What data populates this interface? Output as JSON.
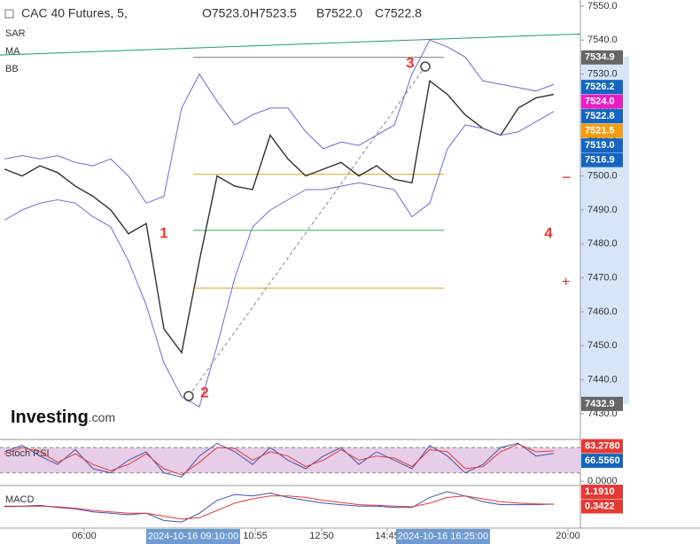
{
  "chart_data": [
    {
      "type": "line",
      "title": "CAC 40 Futures, 5,",
      "ohlc_labels": [
        "O7523.0",
        "H7523.5",
        "B7522.0",
        "C7522.8"
      ],
      "indicators": [
        "SAR",
        "MA",
        "BB"
      ],
      "logo": "Investing",
      "logo_suffix": ".com",
      "x": [
        0,
        1,
        2,
        3,
        4,
        5,
        6,
        7,
        8,
        9,
        10,
        11,
        12,
        13,
        14,
        15,
        16,
        17,
        18,
        19,
        20,
        21,
        22,
        23,
        24,
        25,
        26,
        27,
        28,
        29,
        30,
        31
      ],
      "xlim": [
        -0.25,
        32.5
      ],
      "ylim": [
        7422.7,
        7551.8
      ],
      "yticks": [
        {
          "value": 7430,
          "label": "7430.0"
        },
        {
          "value": 7440,
          "label": "7440.0"
        },
        {
          "value": 7450,
          "label": "7450.0"
        },
        {
          "value": 7460,
          "label": "7460.0"
        },
        {
          "value": 7470,
          "label": "7470.0"
        },
        {
          "value": 7480,
          "label": "7480.0"
        },
        {
          "value": 7490,
          "label": "7490.0"
        },
        {
          "value": 7500,
          "label": "7500.0"
        },
        {
          "value": 7510,
          "label": "7510.0"
        },
        {
          "value": 7520,
          "label": "7520.0"
        },
        {
          "value": 7530,
          "label": "7530.0"
        },
        {
          "value": 7540,
          "label": "7540.0"
        },
        {
          "value": 7550,
          "label": "7550.0"
        }
      ],
      "xticks": [
        {
          "value": 4.5,
          "label": "06:00"
        },
        {
          "value": 14.15,
          "label": "10:55"
        },
        {
          "value": 17.9,
          "label": "12:50"
        },
        {
          "value": 21.6,
          "label": "14:45"
        },
        {
          "value": 31.8,
          "label": "20:00"
        }
      ],
      "x_highlights": [
        {
          "value": 10.65,
          "label": "2024-10-16 09:10:00"
        },
        {
          "value": 24.75,
          "label": "2024-10-16 16:25:00"
        }
      ],
      "series": [
        {
          "color": "#2f2f2f",
          "values": [
            7502,
            7500,
            7503,
            7501,
            7497,
            7494,
            7490,
            7483,
            7486,
            7455,
            7448,
            7475,
            7500,
            7497,
            7496,
            7512,
            7505,
            7500,
            7502,
            7504,
            7500,
            7503,
            7499,
            7498,
            7528,
            7524,
            7518,
            7514,
            7512,
            7520,
            7523,
            7524
          ]
        },
        {
          "color": "#6b6bd6",
          "values": [
            7505,
            7506,
            7505,
            7506,
            7504,
            7503,
            7505,
            7500,
            7492,
            7494,
            7520,
            7530,
            7522,
            7515,
            7518,
            7520,
            7520,
            7513,
            7508,
            7510,
            7509,
            7512,
            7515,
            7530,
            7540,
            7538,
            7535,
            7528,
            7527,
            7526,
            7525,
            7527
          ]
        },
        {
          "color": "#6b6bd6",
          "values": [
            7487,
            7490,
            7492,
            7493,
            7492,
            7488,
            7485,
            7475,
            7462,
            7445,
            7435,
            7432,
            7450,
            7470,
            7485,
            7490,
            7493,
            7496,
            7496,
            7497,
            7498,
            7497,
            7496,
            7488,
            7492,
            7508,
            7515,
            7514,
            7512,
            7513,
            7516,
            7519
          ]
        }
      ],
      "levels": [
        {
          "value": 7534.9,
          "color": "#777777"
        },
        {
          "value": 7500.5,
          "color": "#e0a020"
        },
        {
          "value": 7484,
          "color": "#3cb043"
        },
        {
          "value": 7467,
          "color": "#e0a020"
        }
      ],
      "trendline": {
        "color": "#1a9a80",
        "values": [
          7535.6,
          7541.8
        ]
      },
      "annotations": [
        {
          "text": "1",
          "x": 9.0,
          "y": 7483
        },
        {
          "text": "2",
          "x": 11.3,
          "y": 7436
        },
        {
          "text": "3",
          "x": 22.9,
          "y": 7533
        },
        {
          "text": "4",
          "x": 30.7,
          "y": 7483
        }
      ],
      "price_labels": [
        {
          "value": 7534.9,
          "label": "7534.9",
          "color": "#666666"
        },
        {
          "value": 7526.2,
          "label": "7526.2",
          "color": "#1565c0"
        },
        {
          "value": 7524.0,
          "label": "7524.0",
          "color": "#e91ec8"
        },
        {
          "value": 7522.8,
          "label": "7522.8",
          "color": "#1565c0"
        },
        {
          "value": 7521.5,
          "label": "7521.5",
          "color": "#f39c12"
        },
        {
          "value": 7519.0,
          "label": "7519.0",
          "color": "#1565c0"
        },
        {
          "value": 7516.9,
          "label": "7516.9",
          "color": "#1565c0"
        },
        {
          "value": 7432.9,
          "label": "7432.9",
          "color": "#666666"
        }
      ]
    },
    {
      "type": "line",
      "title": "Stoch RSI",
      "xlim": [
        -0.25,
        32.5
      ],
      "ylim": [
        -10,
        95
      ],
      "x": [
        0,
        1,
        2,
        3,
        4,
        5,
        6,
        7,
        8,
        9,
        10,
        11,
        12,
        13,
        14,
        15,
        16,
        17,
        18,
        19,
        20,
        21,
        22,
        23,
        24,
        25,
        26,
        27,
        28,
        29,
        30,
        31
      ],
      "band": [
        20,
        80
      ],
      "yticks": [
        {
          "value": 0,
          "label": "0.0000"
        }
      ],
      "series": [
        {
          "color": "#3f51b5",
          "values": [
            70,
            85,
            60,
            40,
            75,
            30,
            20,
            50,
            70,
            20,
            10,
            60,
            90,
            70,
            40,
            80,
            50,
            30,
            60,
            80,
            40,
            70,
            50,
            30,
            85,
            60,
            20,
            40,
            80,
            90,
            60,
            66
          ]
        },
        {
          "color": "#e53935",
          "values": [
            65,
            80,
            70,
            45,
            65,
            40,
            25,
            40,
            65,
            30,
            15,
            45,
            80,
            78,
            50,
            70,
            60,
            35,
            50,
            75,
            50,
            60,
            55,
            35,
            75,
            70,
            30,
            35,
            70,
            88,
            70,
            72
          ]
        }
      ],
      "last_values": [
        {
          "value": 83.278,
          "label": "83.2780",
          "color": "#e53935"
        },
        {
          "value": 66.556,
          "label": "66.5560",
          "color": "#1565c0"
        }
      ]
    },
    {
      "type": "line",
      "title": "MACD",
      "xlim": [
        -0.25,
        32.5
      ],
      "ylim": [
        -1.2,
        1.5
      ],
      "x": [
        0,
        1,
        2,
        3,
        4,
        5,
        6,
        7,
        8,
        9,
        10,
        11,
        12,
        13,
        14,
        15,
        16,
        17,
        18,
        19,
        20,
        21,
        22,
        23,
        24,
        25,
        26,
        27,
        28,
        29,
        30,
        31
      ],
      "series": [
        {
          "color": "#3f51b5",
          "values": [
            0.2,
            0.2,
            0.25,
            0.1,
            0,
            -0.2,
            -0.3,
            -0.4,
            -0.3,
            -0.8,
            -0.9,
            -0.3,
            0.6,
            1.0,
            0.9,
            1.1,
            0.8,
            0.6,
            0.4,
            0.3,
            0.2,
            0.2,
            0.1,
            0.1,
            0.8,
            1.2,
            0.9,
            0.5,
            0.3,
            0.3,
            0.3,
            0.34
          ]
        },
        {
          "color": "#e53935",
          "values": [
            0.15,
            0.18,
            0.2,
            0.15,
            0.05,
            -0.1,
            -0.2,
            -0.3,
            -0.3,
            -0.5,
            -0.7,
            -0.6,
            -0.1,
            0.4,
            0.7,
            0.9,
            0.9,
            0.8,
            0.6,
            0.45,
            0.3,
            0.25,
            0.2,
            0.15,
            0.4,
            0.8,
            0.9,
            0.7,
            0.5,
            0.4,
            0.35,
            0.33
          ]
        }
      ],
      "last_values": [
        {
          "value": 1.191,
          "label": "1.1910",
          "color": "#e53935"
        },
        {
          "value": 0.3422,
          "label": "0.3422",
          "color": "#e53935"
        }
      ]
    }
  ]
}
